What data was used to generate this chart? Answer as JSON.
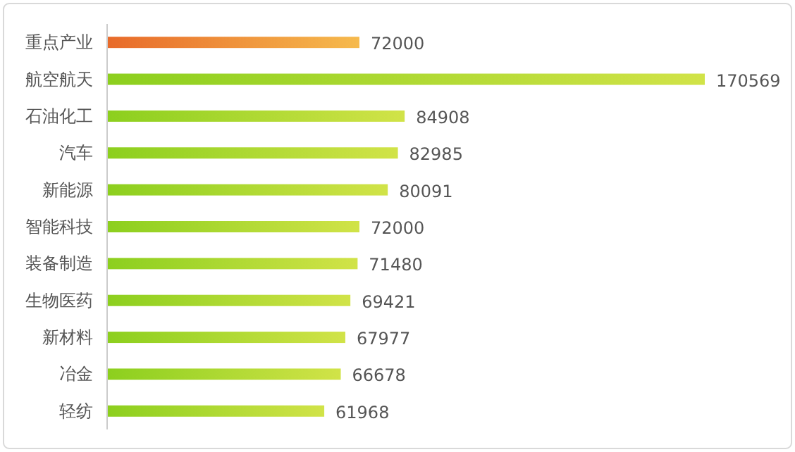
{
  "chart_data": {
    "type": "bar",
    "orientation": "horizontal",
    "data_labels": true,
    "categories": [
      "重点产业",
      "航空航天",
      "石油化工",
      "汽车",
      "新能源",
      "智能科技",
      "装备制造",
      "生物医药",
      "新材料",
      "冶金",
      "轻纺"
    ],
    "values": [
      72000,
      170569,
      84908,
      82985,
      80091,
      72000,
      71480,
      69421,
      67977,
      66678,
      61968
    ],
    "colors": [
      "#e86a2a",
      "#8ccf1e",
      "#8ccf1e",
      "#8ccf1e",
      "#8ccf1e",
      "#8ccf1e",
      "#8ccf1e",
      "#8ccf1e",
      "#8ccf1e",
      "#8ccf1e",
      "#8ccf1e"
    ]
  }
}
